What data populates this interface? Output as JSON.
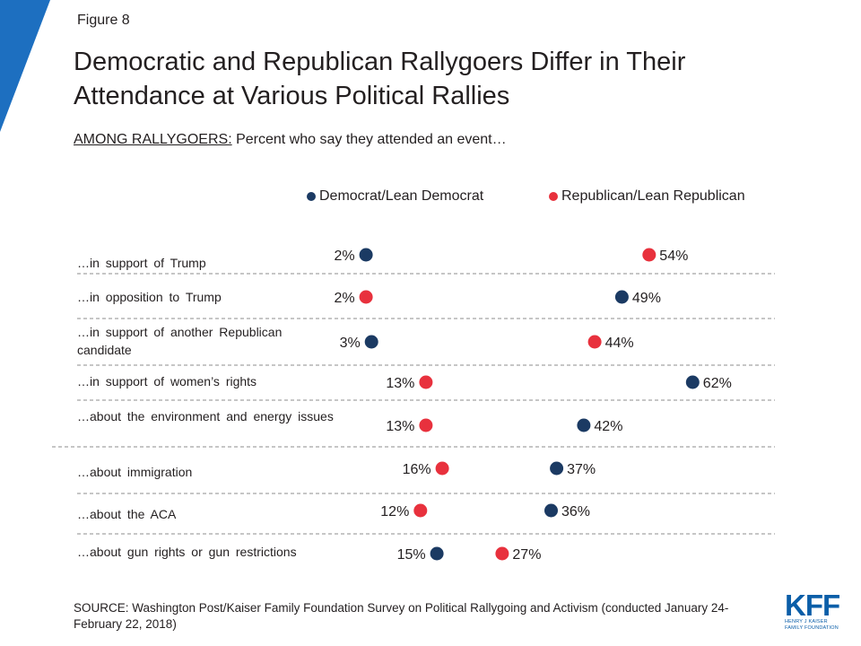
{
  "figure_label": "Figure 8",
  "title": "Democratic and Republican Rallygoers Differ in Their Attendance at Various Political Rallies",
  "subtitle_lead": "AMONG RALLYGOERS:",
  "subtitle_rest": " Percent who say they attended an event…",
  "source": "SOURCE: Washington Post/Kaiser Family Foundation Survey on Political Rallygoing and Activism (conducted January 24-February 22, 2018)",
  "logo": {
    "main": "KFF",
    "line1": "HENRY J KAISER",
    "line2": "FAMILY FOUNDATION"
  },
  "colors": {
    "democrat": "#1b3a63",
    "republican": "#e8313d",
    "corner": "#1d6fc0",
    "divider": "#8c8c8c"
  },
  "chart_data": {
    "type": "scatter",
    "categories": [
      "…in support of Trump",
      "…in opposition to Trump",
      "…in support of another Republican candidate",
      "…in support of women’s rights",
      "…about the environment and energy issues",
      "…about immigration",
      "…about the ACA",
      "…about gun rights or gun restrictions"
    ],
    "series": [
      {
        "name": "Democrat/Lean Democrat",
        "color": "#1b3a63",
        "values": [
          2,
          49,
          3,
          62,
          42,
          37,
          36,
          15
        ]
      },
      {
        "name": "Republican/Lean Republican",
        "color": "#e8313d",
        "values": [
          54,
          2,
          44,
          13,
          13,
          16,
          12,
          27
        ]
      }
    ],
    "value_suffix": "%",
    "legend_position": "top",
    "grid": false
  }
}
